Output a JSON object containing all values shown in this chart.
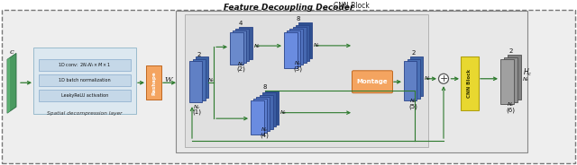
{
  "title": "Feature Decoupling Decoder",
  "label_c": "c",
  "label_w": "W",
  "label_reshape": "Reshape",
  "label_montage": "Montage",
  "label_cnn_right": "CNN Block",
  "label_cnn_block_title": "CNN Block",
  "label_spatial": "Spatial decompression layer",
  "label_h": "$H_c$",
  "line1": "1D conv:  $2N_cN_t \\times M \\times 1$",
  "line2": "1D batch normalization",
  "line3": "LeakyReLU activation",
  "arrow_color": "#2d7a2d",
  "reshape_color": "#f4a460",
  "montage_color": "#f4a460",
  "cnn_right_color": "#e8d830",
  "outer_bg": "#ececec",
  "outer_border": "#888888",
  "cnn_block_bg": "#e0e0e0",
  "cnn_block_border": "#999999",
  "spatial_bg": "#dce8f0",
  "spatial_border": "#99bbcc",
  "op_bg": "#c5d8e8",
  "op_border": "#88aacc",
  "tensor_colors": [
    "#5577bb",
    "#4a70b0",
    "#3d63a3"
  ],
  "tensor_edge": "#2a4488",
  "gray_tensor_colors": [
    "#909090",
    "#808080",
    "#707070"
  ],
  "gray_tensor_edge": "#505050"
}
